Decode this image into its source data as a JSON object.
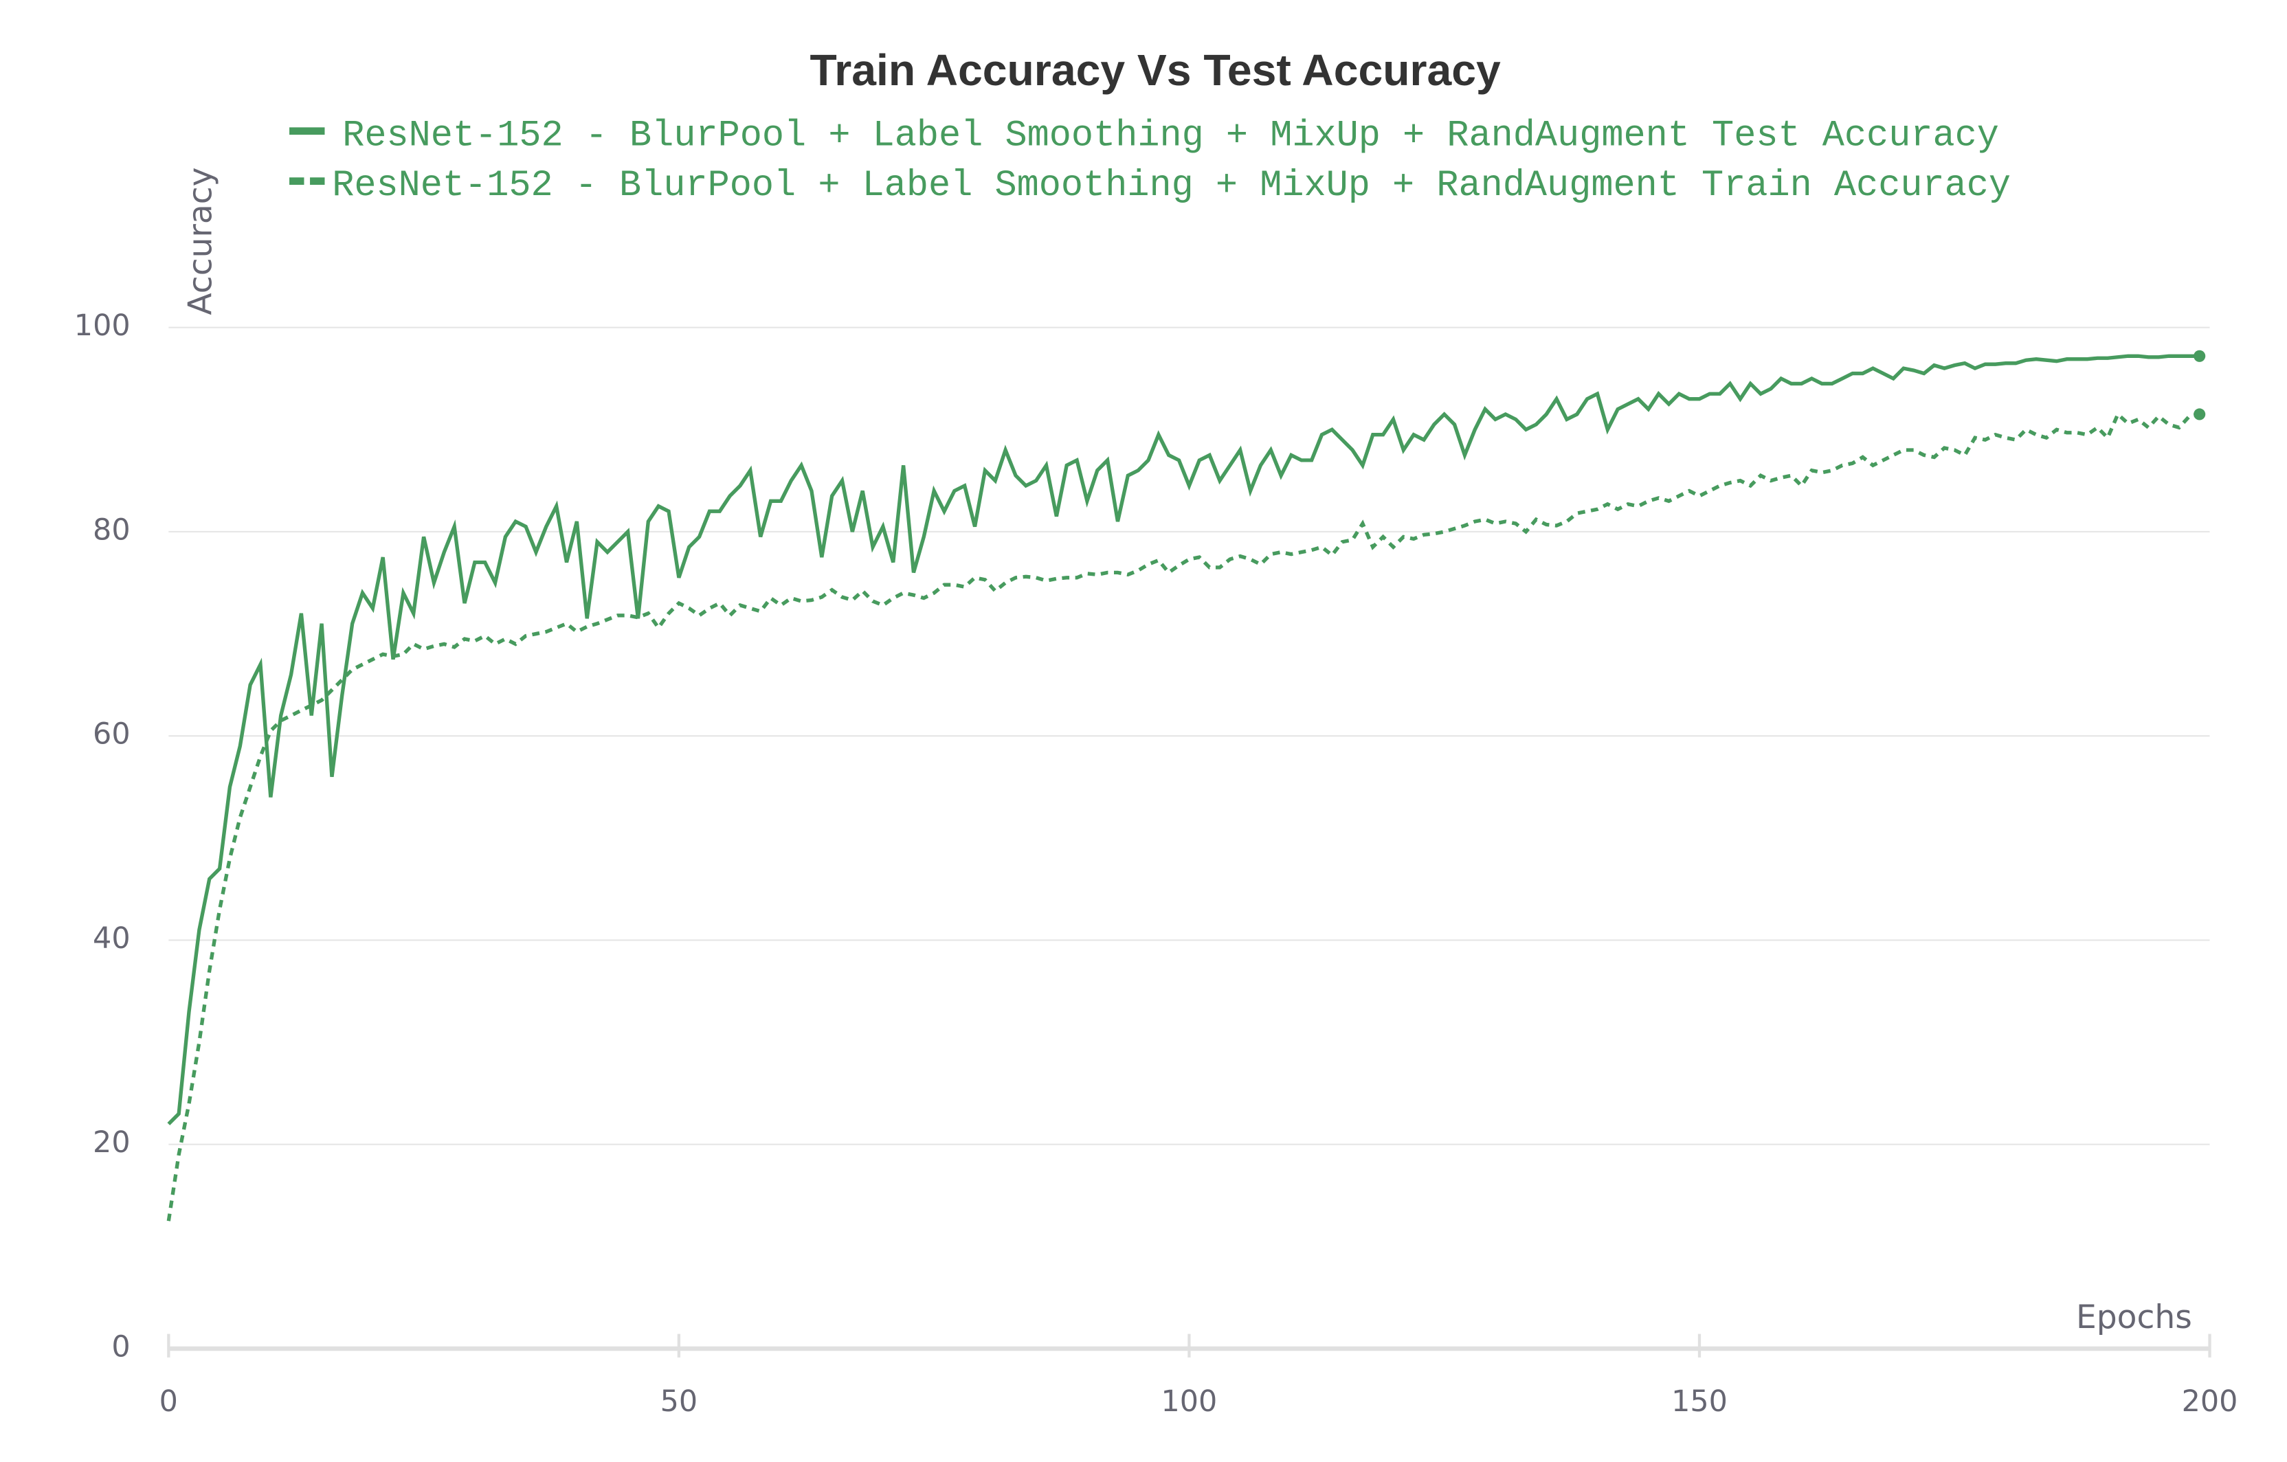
{
  "chart_data": {
    "type": "line",
    "title": "Train Accuracy Vs Test Accuracy",
    "x_label": "Epochs",
    "y_label": "Accuracy",
    "xlim": [
      0,
      200
    ],
    "xticks": [
      0,
      50,
      100,
      150,
      200
    ],
    "ylim": [
      0,
      109
    ],
    "yticks": [
      0,
      20,
      40,
      60,
      80,
      100
    ],
    "grid": true,
    "x": [
      0,
      1,
      2,
      3,
      4,
      5,
      6,
      7,
      8,
      9,
      10,
      11,
      12,
      13,
      14,
      15,
      16,
      17,
      18,
      19,
      20,
      21,
      22,
      23,
      24,
      25,
      26,
      27,
      28,
      29,
      30,
      31,
      32,
      33,
      34,
      35,
      36,
      37,
      38,
      39,
      40,
      41,
      42,
      43,
      44,
      45,
      46,
      47,
      48,
      49,
      50,
      51,
      52,
      53,
      54,
      55,
      56,
      57,
      58,
      59,
      60,
      61,
      62,
      63,
      64,
      65,
      66,
      67,
      68,
      69,
      70,
      71,
      72,
      73,
      74,
      75,
      76,
      77,
      78,
      79,
      80,
      81,
      82,
      83,
      84,
      85,
      86,
      87,
      88,
      89,
      90,
      91,
      92,
      93,
      94,
      95,
      96,
      97,
      98,
      99,
      100,
      101,
      102,
      103,
      104,
      105,
      106,
      107,
      108,
      109,
      110,
      111,
      112,
      113,
      114,
      115,
      116,
      117,
      118,
      119,
      120,
      121,
      122,
      123,
      124,
      125,
      126,
      127,
      128,
      129,
      130,
      131,
      132,
      133,
      134,
      135,
      136,
      137,
      138,
      139,
      140,
      141,
      142,
      143,
      144,
      145,
      146,
      147,
      148,
      149,
      150,
      151,
      152,
      153,
      154,
      155,
      156,
      157,
      158,
      159,
      160,
      161,
      162,
      163,
      164,
      165,
      166,
      167,
      168,
      169,
      170,
      171,
      172,
      173,
      174,
      175,
      176,
      177,
      178,
      179,
      180,
      181,
      182,
      183,
      184,
      185,
      186,
      187,
      188,
      189,
      190,
      191,
      192,
      193,
      194,
      195,
      196,
      197,
      198,
      199
    ],
    "series": [
      {
        "name": "ResNet-152 - BlurPool + Label Smoothing + MixUp + RandAugment Test Accuracy",
        "color": "#479b5e",
        "dash": "solid",
        "values": [
          22,
          23,
          33,
          41,
          46,
          47,
          55,
          59,
          65,
          67,
          54,
          62,
          66,
          72,
          62,
          71,
          56,
          64,
          71,
          74,
          72.5,
          77.5,
          67.5,
          74,
          72,
          79.5,
          75,
          78,
          80.5,
          73,
          77,
          77,
          75,
          79.5,
          81,
          80.5,
          78,
          80.5,
          82.5,
          77,
          81,
          71.5,
          79,
          78,
          79,
          80,
          71.5,
          81,
          82.5,
          82,
          75.5,
          78.5,
          79.5,
          82,
          82,
          83.5,
          84.5,
          86,
          79.5,
          83,
          83,
          85,
          86.5,
          84,
          77.5,
          83.5,
          85,
          80,
          84,
          78.5,
          80.5,
          77,
          86.5,
          76,
          79.5,
          84,
          82,
          84,
          84.5,
          80.5,
          86,
          85,
          88,
          85.5,
          84.5,
          85,
          86.5,
          81.5,
          86.5,
          87,
          83,
          86,
          87,
          81,
          85.5,
          86,
          87,
          89.5,
          87.5,
          87,
          84.5,
          87,
          87.5,
          85,
          86.5,
          88,
          84,
          86.5,
          88,
          85.5,
          87.5,
          87,
          87,
          89.5,
          90,
          89,
          88,
          86.5,
          89.5,
          89.5,
          91,
          88,
          89.5,
          89,
          90.5,
          91.5,
          90.5,
          87.5,
          90,
          92,
          91,
          91.5,
          91,
          90,
          90.5,
          91.5,
          93,
          91,
          91.5,
          93,
          93.5,
          90,
          92,
          92.5,
          93,
          92,
          93.5,
          92.5,
          93.5,
          93,
          93,
          93.5,
          93.5,
          94.5,
          93,
          94.5,
          93.5,
          94,
          95,
          94.5,
          94.5,
          95,
          94.5,
          94.5,
          95,
          95.5,
          95.5,
          96,
          95.5,
          95,
          96,
          95.8,
          95.5,
          96.3,
          96,
          96.3,
          96.5,
          96,
          96.4,
          96.4,
          96.5,
          96.5,
          96.8,
          96.9,
          96.8,
          96.7,
          96.9,
          96.9,
          96.9,
          97,
          97,
          97.1,
          97.2,
          97.2,
          97.1,
          97.1,
          97.2,
          97.2,
          97.2,
          97.2
        ]
      },
      {
        "name": "ResNet-152 - BlurPool + Label Smoothing + MixUp + RandAugment Train Accuracy",
        "color": "#479b5e",
        "dash": "dashed",
        "values": [
          12.5,
          19,
          24,
          30,
          37,
          43,
          48,
          52,
          55,
          58,
          60.5,
          61.5,
          62,
          62.5,
          63,
          63.5,
          64.5,
          65.5,
          66.5,
          67,
          67.5,
          68,
          67.8,
          68,
          69,
          68.5,
          68.8,
          69,
          68.7,
          69.5,
          69.3,
          69.8,
          69,
          69.5,
          69,
          69.8,
          70,
          70.2,
          70.6,
          71,
          70.2,
          70.7,
          71,
          71.4,
          71.8,
          71.8,
          71.6,
          72,
          70.6,
          72,
          73,
          72.5,
          71.8,
          72.5,
          73,
          71.8,
          72.8,
          72.5,
          72.2,
          73.5,
          72.8,
          73.5,
          73.2,
          73.3,
          73.6,
          74.3,
          73.6,
          73.3,
          74.2,
          73.2,
          72.8,
          73.5,
          74,
          73.8,
          73.5,
          74,
          74.8,
          74.8,
          74.6,
          75.5,
          75.3,
          74.2,
          75,
          75.5,
          75.6,
          75.5,
          75.2,
          75.4,
          75.5,
          75.5,
          75.9,
          75.8,
          76,
          76,
          75.8,
          76.2,
          76.8,
          77.2,
          76,
          76.7,
          77.3,
          77.5,
          76.5,
          76.5,
          77.3,
          77.6,
          77.3,
          76.8,
          77.8,
          78,
          77.8,
          78,
          78.2,
          78.5,
          77.7,
          79,
          79.2,
          80.8,
          78.5,
          79.5,
          78.5,
          79.5,
          79.3,
          79.7,
          79.8,
          80,
          80.3,
          80.6,
          81,
          81.2,
          80.8,
          81,
          80.8,
          80,
          81.2,
          80.7,
          80.6,
          81,
          81.8,
          82,
          82.2,
          82.7,
          82.2,
          82.7,
          82.5,
          83,
          83.3,
          83,
          83.5,
          84,
          83.5,
          84,
          84.5,
          84.8,
          85,
          84.5,
          85.5,
          85,
          85.3,
          85.5,
          84.5,
          86,
          85.8,
          86,
          86.5,
          86.7,
          87.3,
          86.5,
          87,
          87.5,
          88,
          88,
          87.5,
          87.3,
          88.2,
          88,
          87.5,
          89.2,
          89,
          89.5,
          89.2,
          89,
          90,
          89.5,
          89.2,
          90,
          89.7,
          89.7,
          89.5,
          90.2,
          89.2,
          91.5,
          90.6,
          91,
          90.2,
          91.3,
          90.5,
          90.2,
          91.3,
          91.5
        ]
      }
    ]
  }
}
